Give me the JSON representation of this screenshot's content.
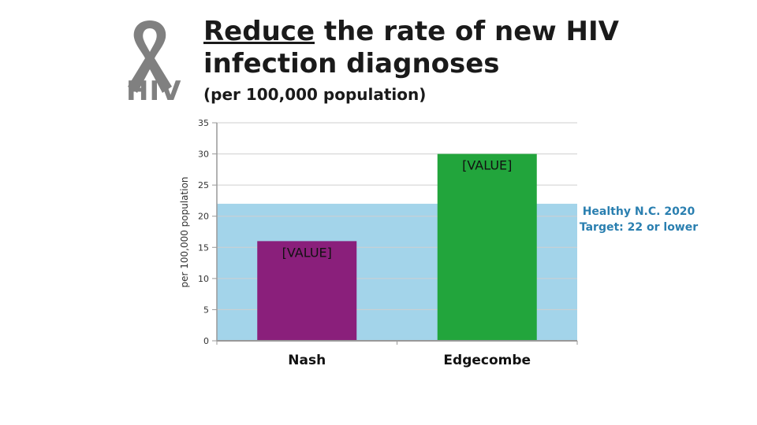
{
  "logo": {
    "text": "HIV",
    "icon": "awareness-ribbon-icon",
    "color": "#808080"
  },
  "title": {
    "underlined": "Reduce",
    "rest": " the rate of new HIV infection diagnoses"
  },
  "subtitle": "(per 100,000 population)",
  "colors": {
    "target_band": "#a3d4ea",
    "nash": "#8a1f7b",
    "edgecombe": "#22a53c",
    "target_text": "#2a7fb0"
  },
  "chart_data": {
    "type": "bar",
    "categories": [
      "Nash",
      "Edgecombe"
    ],
    "values": [
      16,
      30
    ],
    "data_labels": [
      "[VALUE]",
      "[VALUE]"
    ],
    "bar_colors": [
      "#8a1f7b",
      "#22a53c"
    ],
    "ylabel": "per 100,000 population",
    "ylim": [
      0,
      35
    ],
    "yticks": [
      0,
      5,
      10,
      15,
      20,
      25,
      30,
      35
    ],
    "grid": true,
    "target_band": {
      "from": 0,
      "to": 22,
      "label_lines": [
        "Healthy N.C. 2020",
        "Target: 22 or lower"
      ]
    }
  }
}
